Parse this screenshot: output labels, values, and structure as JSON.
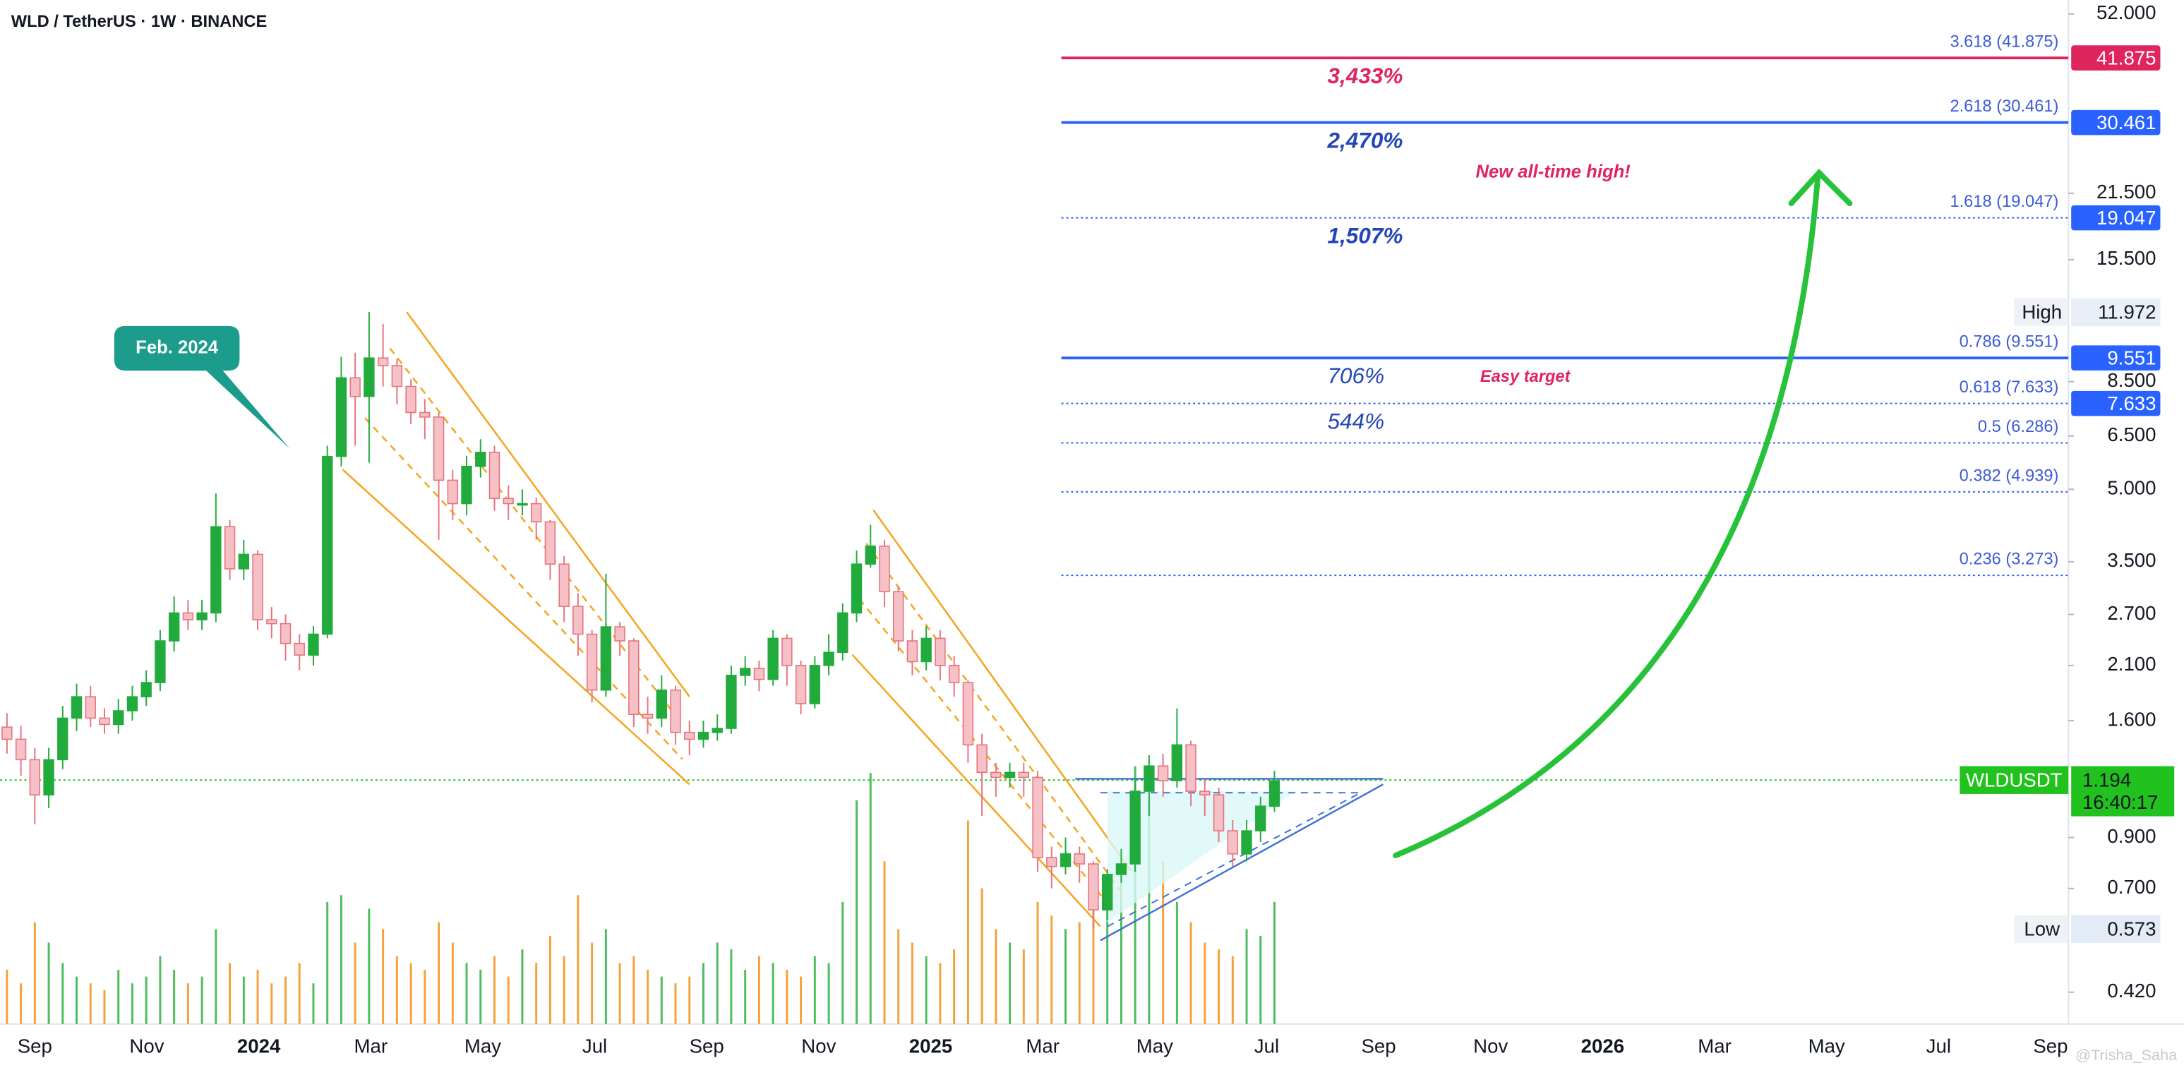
{
  "chart_data": {
    "type": "candlestick",
    "title": "WLD / TetherUS · 1W · BINANCE",
    "log_scale": true,
    "ylim": [
      0.359,
      55.7
    ],
    "yticks": [
      {
        "value": 52,
        "label": "52.000"
      },
      {
        "value": 21.5,
        "label": "21.500"
      },
      {
        "value": 15.5,
        "label": "15.500"
      },
      {
        "value": 8.5,
        "label": "8.500"
      },
      {
        "value": 6.5,
        "label": "6.500"
      },
      {
        "value": 5,
        "label": "5.000"
      },
      {
        "value": 3.5,
        "label": "3.500"
      },
      {
        "value": 2.7,
        "label": "2.700"
      },
      {
        "value": 2.1,
        "label": "2.100"
      },
      {
        "value": 1.6,
        "label": "1.600"
      },
      {
        "value": 0.9,
        "label": "0.900"
      },
      {
        "value": 0.7,
        "label": "0.700"
      },
      {
        "value": 0.42,
        "label": "0.420"
      }
    ],
    "xticks": [
      "Sep",
      "Nov",
      "2024",
      "Mar",
      "May",
      "Jul",
      "Sep",
      "Nov",
      "2025",
      "Mar",
      "May",
      "Jul",
      "Sep",
      "Nov",
      "2026",
      "Mar",
      "May",
      "Jul",
      "Sep"
    ],
    "up_color": "#22ab3d",
    "down_color": "#f5c1c6",
    "down_edge": "#e8737c",
    "volume_up_color": "#4cbd5d",
    "volume_down_color": "#f5a13a",
    "open": [
      1.55,
      1.46,
      1.32,
      1.11,
      1.32,
      1.62,
      1.8,
      1.62,
      1.57,
      1.68,
      1.8,
      1.93,
      2.37,
      2.72,
      2.63,
      2.72,
      4.16,
      3.38,
      3.63,
      2.63,
      2.58,
      2.34,
      2.21,
      2.45,
      5.88,
      8.66,
      7.9,
      9.55,
      9.2,
      8.3,
      7.3,
      7.14,
      5.23,
      4.66,
      5.6,
      6.0,
      4.78,
      4.66,
      4.66,
      4.26,
      3.46,
      2.81,
      2.45,
      1.86,
      2.54,
      2.37,
      1.65,
      1.62,
      1.86,
      1.51,
      1.46,
      1.51,
      1.54,
      2.0,
      2.07,
      1.96,
      2.4,
      2.1,
      1.74,
      2.1,
      2.24,
      2.72,
      3.46,
      3.78,
      3.02,
      2.37,
      2.14,
      2.4,
      2.1,
      1.93,
      1.42,
      1.24,
      1.21,
      1.24,
      1.21,
      0.815,
      0.78,
      0.83,
      0.79,
      0.63,
      0.75,
      0.79,
      1.13,
      1.28,
      1.19,
      1.42,
      1.13,
      1.11,
      0.93,
      0.83,
      0.93,
      1.05
    ],
    "high": [
      1.66,
      1.56,
      1.4,
      1.4,
      1.72,
      1.92,
      1.9,
      1.7,
      1.78,
      1.9,
      2.05,
      2.5,
      2.95,
      2.9,
      2.9,
      4.9,
      4.3,
      3.9,
      3.7,
      2.8,
      2.7,
      2.45,
      2.55,
      6.2,
      9.6,
      9.8,
      11.972,
      11.3,
      9.5,
      8.6,
      7.8,
      7.3,
      5.5,
      5.9,
      6.4,
      6.2,
      5.1,
      5.0,
      4.8,
      4.3,
      3.6,
      3.0,
      2.5,
      3.3,
      2.6,
      2.4,
      1.8,
      2.0,
      1.9,
      1.6,
      1.6,
      1.65,
      2.1,
      2.2,
      2.15,
      2.5,
      2.45,
      2.15,
      2.2,
      2.45,
      2.85,
      3.7,
      4.2,
      3.9,
      3.1,
      2.5,
      2.55,
      2.5,
      2.2,
      1.95,
      1.5,
      1.3,
      1.3,
      1.3,
      1.25,
      0.86,
      0.9,
      0.86,
      0.8,
      0.77,
      0.85,
      1.2,
      1.35,
      1.36,
      1.7,
      1.45,
      1.2,
      1.15,
      0.98,
      0.98,
      1.1,
      1.25
    ],
    "low": [
      1.36,
      1.22,
      0.96,
      1.04,
      1.26,
      1.52,
      1.55,
      1.5,
      1.5,
      1.6,
      1.72,
      1.85,
      2.25,
      2.5,
      2.5,
      2.6,
      3.2,
      3.2,
      2.5,
      2.4,
      2.15,
      2.05,
      2.1,
      2.4,
      5.6,
      6.2,
      5.7,
      8.3,
      7.6,
      6.9,
      6.4,
      3.9,
      4.3,
      4.4,
      5.3,
      4.5,
      4.3,
      4.4,
      3.9,
      3.2,
      2.6,
      2.2,
      1.75,
      1.8,
      2.2,
      1.55,
      1.5,
      1.55,
      1.42,
      1.35,
      1.4,
      1.45,
      1.5,
      1.9,
      1.85,
      1.9,
      1.9,
      1.65,
      1.7,
      2.0,
      2.15,
      2.6,
      3.4,
      2.8,
      2.25,
      2.0,
      2.05,
      1.95,
      1.8,
      1.3,
      1.0,
      1.1,
      1.15,
      1.1,
      0.76,
      0.7,
      0.75,
      0.72,
      0.573,
      0.6,
      0.72,
      0.76,
      1.0,
      1.1,
      1.15,
      1.05,
      1.0,
      0.88,
      0.78,
      0.8,
      0.88,
      1.02
    ],
    "close": [
      1.46,
      1.32,
      1.11,
      1.32,
      1.62,
      1.8,
      1.62,
      1.57,
      1.68,
      1.8,
      1.93,
      2.37,
      2.72,
      2.63,
      2.72,
      4.16,
      3.38,
      3.63,
      2.63,
      2.58,
      2.34,
      2.21,
      2.45,
      5.88,
      8.66,
      7.9,
      9.55,
      9.2,
      8.3,
      7.3,
      7.14,
      5.23,
      4.66,
      5.6,
      6.0,
      4.78,
      4.66,
      4.66,
      4.26,
      3.46,
      2.81,
      2.45,
      1.86,
      2.54,
      2.37,
      1.65,
      1.62,
      1.86,
      1.51,
      1.46,
      1.51,
      1.54,
      2.0,
      2.07,
      1.96,
      2.4,
      2.1,
      1.74,
      2.1,
      2.24,
      2.72,
      3.46,
      3.78,
      3.02,
      2.37,
      2.14,
      2.4,
      2.1,
      1.93,
      1.42,
      1.24,
      1.21,
      1.24,
      1.21,
      0.815,
      0.78,
      0.83,
      0.79,
      0.63,
      0.75,
      0.79,
      1.13,
      1.28,
      1.19,
      1.42,
      1.13,
      1.11,
      0.93,
      0.83,
      0.93,
      1.05,
      1.19
    ],
    "volume": [
      40,
      30,
      75,
      60,
      45,
      35,
      30,
      25,
      40,
      30,
      35,
      50,
      40,
      30,
      35,
      70,
      45,
      35,
      40,
      30,
      35,
      45,
      30,
      90,
      95,
      60,
      85,
      70,
      50,
      45,
      40,
      75,
      60,
      45,
      40,
      50,
      35,
      55,
      45,
      65,
      50,
      95,
      60,
      70,
      45,
      50,
      40,
      35,
      30,
      35,
      45,
      60,
      55,
      40,
      50,
      45,
      40,
      35,
      50,
      45,
      90,
      165,
      185,
      120,
      70,
      60,
      50,
      45,
      55,
      150,
      100,
      70,
      60,
      55,
      90,
      80,
      70,
      75,
      100,
      90,
      110,
      190,
      165,
      120,
      90,
      75,
      60,
      55,
      50,
      70,
      65,
      90
    ],
    "fib_levels": [
      {
        "label": "3.618 (41.875)",
        "value": 41.875,
        "color": "#e0245e",
        "style": "solid",
        "badge": true,
        "gain": "3,433%"
      },
      {
        "label": "2.618 (30.461)",
        "value": 30.461,
        "color": "#2962ff",
        "style": "solid",
        "badge": true,
        "gain": "2,470%"
      },
      {
        "label": "1.618 (19.047)",
        "value": 19.047,
        "color": "#2962ff",
        "style": "dotted",
        "badge": true,
        "gain": "1,507%"
      },
      {
        "label": "0.786 (9.551)",
        "value": 9.551,
        "color": "#2962ff",
        "style": "solid",
        "badge": true,
        "gain": "706%"
      },
      {
        "label": "0.618 (7.633)",
        "value": 7.633,
        "color": "#2962ff",
        "style": "dotted",
        "badge": true,
        "gain": "544%"
      },
      {
        "label": "0.5 (6.286)",
        "value": 6.286,
        "color": "#2962ff",
        "style": "dotted",
        "badge": false
      },
      {
        "label": "0.382 (4.939)",
        "value": 4.939,
        "color": "#2962ff",
        "style": "dotted",
        "badge": false
      },
      {
        "label": "0.236 (3.273)",
        "value": 3.273,
        "color": "#2962ff",
        "style": "dotted",
        "badge": false
      }
    ],
    "high_marker": {
      "label": "High",
      "value": 11.972
    },
    "low_marker": {
      "label": "Low",
      "value": 0.573
    },
    "current": {
      "name": "WLDUSDT",
      "value": 1.194,
      "timer": "16:40:17",
      "color": "#22c21e"
    },
    "annotations": {
      "callout": "Feb. 2024",
      "ath": "New all-time high!",
      "easy": "Easy target",
      "watermark": "@Trisha_Saha"
    }
  }
}
